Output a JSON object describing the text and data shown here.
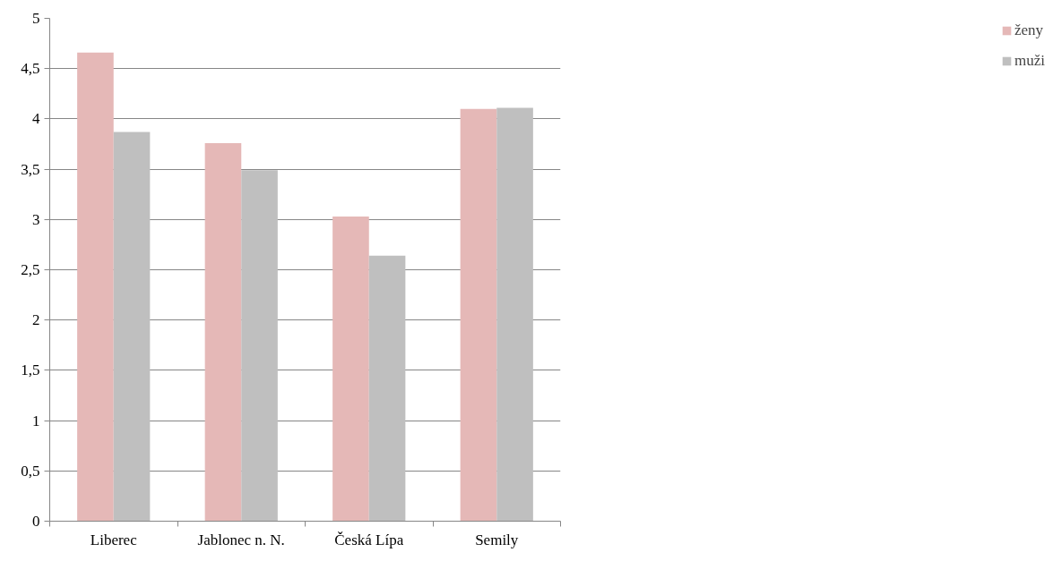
{
  "chart_data": {
    "type": "bar",
    "categories": [
      "Liberec",
      "Jablonec n. N.",
      "Česká Lípa",
      "Semily"
    ],
    "series": [
      {
        "name": "ženy",
        "color": "#e5b8b7",
        "values": [
          4.66,
          3.76,
          3.03,
          4.1
        ]
      },
      {
        "name": "muži",
        "color": "#bfbfbf",
        "values": [
          3.87,
          3.49,
          2.64,
          4.11
        ]
      }
    ],
    "ylim": [
      0,
      5
    ],
    "yticks": [
      0,
      {
        "value": 0.5,
        "label": "0,5"
      },
      1,
      {
        "value": 1.5,
        "label": "1,5"
      },
      2,
      {
        "value": 2.5,
        "label": "2,5"
      },
      3,
      {
        "value": 3.5,
        "label": "3,5"
      },
      4,
      {
        "value": 4.5,
        "label": "4,5"
      },
      5
    ],
    "grid": "y",
    "legend": "right"
  }
}
